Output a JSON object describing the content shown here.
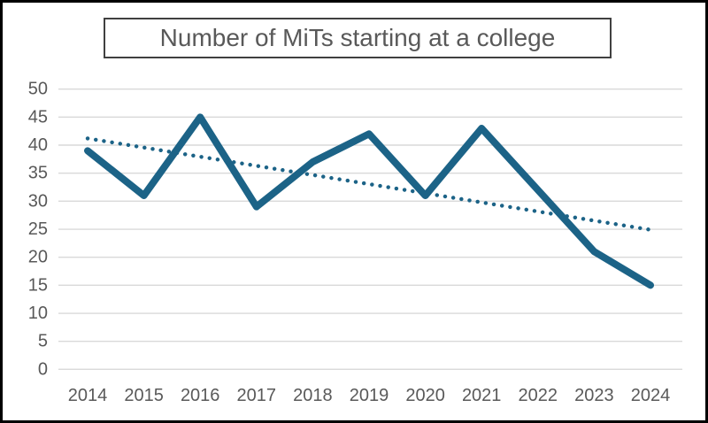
{
  "title": {
    "text": "Number of MiTs starting at a college"
  },
  "colors": {
    "accent": "#1C6387",
    "text": "#595959",
    "grid": "#D9D9D9",
    "title_border": "#404040",
    "frame_border": "#000000",
    "background": "#ffffff"
  },
  "chart_data": {
    "type": "line",
    "title": "Number of MiTs starting at a college",
    "categories": [
      "2014",
      "2015",
      "2016",
      "2017",
      "2018",
      "2019",
      "2020",
      "2021",
      "2022",
      "2023",
      "2024"
    ],
    "series": [
      {
        "name": "Number of MiTs starting at a college",
        "style": "solid",
        "values": [
          39,
          31,
          45,
          29,
          37,
          42,
          31,
          43,
          32,
          21,
          15
        ]
      },
      {
        "name": "linear-trendline",
        "style": "dotted",
        "trend_start": 41.2,
        "trend_end": 24.9
      }
    ],
    "xlabel": "",
    "ylabel": "",
    "ylim": [
      0,
      50
    ],
    "ytick_step": 5,
    "yticks": [
      0,
      5,
      10,
      15,
      20,
      25,
      30,
      35,
      40,
      45,
      50
    ],
    "grid": true,
    "legend_position": "none"
  }
}
